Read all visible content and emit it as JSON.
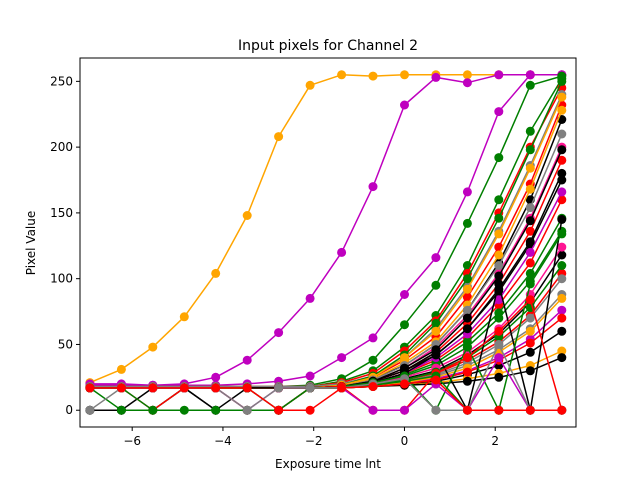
{
  "chart_data": {
    "type": "line",
    "title": "Input pixels for Channel 2",
    "xlabel": "Exposure time lnt",
    "ylabel": "Pixel Value",
    "xlim": [
      -7.15,
      3.78
    ],
    "ylim": [
      -12.75,
      267.75
    ],
    "grid": false,
    "x_ticks": [
      {
        "value": -6,
        "label": "−6"
      },
      {
        "value": -4,
        "label": "−4"
      },
      {
        "value": -2,
        "label": "−2"
      },
      {
        "value": 0,
        "label": "0"
      },
      {
        "value": 2,
        "label": "2"
      }
    ],
    "y_ticks": [
      {
        "value": 0,
        "label": "0"
      },
      {
        "value": 50,
        "label": "50"
      },
      {
        "value": 100,
        "label": "100"
      },
      {
        "value": 150,
        "label": "150"
      },
      {
        "value": 200,
        "label": "200"
      },
      {
        "value": 250,
        "label": "250"
      }
    ],
    "x": [
      -6.931,
      -6.238,
      -5.545,
      -4.852,
      -4.159,
      -3.466,
      -2.773,
      -2.079,
      -1.386,
      -0.693,
      0.0,
      0.693,
      1.386,
      2.079,
      2.773,
      3.466
    ],
    "colors": {
      "orange": "#ffa500",
      "purple": "#bf00bf",
      "green": "#007f00",
      "red": "#ff0000",
      "black": "#000000",
      "gray": "#808080",
      "pink": "#ff1493"
    },
    "series": [
      {
        "color": "#ffa500",
        "values": [
          21,
          31,
          48,
          71,
          104,
          148,
          208,
          247,
          255,
          254,
          255,
          255,
          255,
          255,
          255,
          255
        ]
      },
      {
        "color": "#bf00bf",
        "values": [
          20,
          20,
          19,
          20,
          25,
          38,
          59,
          85,
          120,
          170,
          232,
          253,
          249,
          255,
          255,
          255
        ]
      },
      {
        "color": "#bf00bf",
        "values": [
          19,
          19,
          19,
          19,
          19,
          20,
          22,
          26,
          40,
          55,
          88,
          116,
          166,
          227,
          255,
          255
        ]
      },
      {
        "color": "#007f00",
        "values": [
          18,
          18,
          18,
          18,
          18,
          18,
          18,
          19,
          24,
          38,
          65,
          95,
          142,
          192,
          247,
          254
        ]
      },
      {
        "color": "#007f00",
        "values": [
          17,
          17,
          17,
          17,
          17,
          17,
          17,
          18,
          22,
          30,
          48,
          72,
          110,
          160,
          212,
          252
        ]
      },
      {
        "color": "#ff0000",
        "values": [
          18,
          18,
          18,
          18,
          18,
          18,
          18,
          18,
          21,
          28,
          45,
          68,
          104,
          150,
          200,
          245
        ]
      },
      {
        "color": "#ff0000",
        "values": [
          17,
          17,
          17,
          17,
          17,
          17,
          17,
          17,
          20,
          25,
          38,
          56,
          86,
          124,
          172,
          232
        ]
      },
      {
        "color": "#000000",
        "values": [
          17,
          17,
          17,
          17,
          17,
          17,
          17,
          17,
          19,
          24,
          34,
          50,
          76,
          112,
          160,
          221
        ]
      },
      {
        "color": "#808080",
        "values": [
          18,
          18,
          18,
          18,
          18,
          18,
          18,
          18,
          20,
          26,
          40,
          62,
          94,
          136,
          186,
          240
        ]
      },
      {
        "color": "#000000",
        "values": [
          17,
          17,
          17,
          17,
          17,
          17,
          17,
          17,
          18,
          22,
          30,
          42,
          62,
          90,
          126,
          175
        ]
      },
      {
        "color": "#ffa500",
        "values": [
          17,
          17,
          17,
          17,
          17,
          17,
          17,
          17,
          19,
          24,
          36,
          52,
          80,
          118,
          168,
          228
        ]
      },
      {
        "color": "#ff0000",
        "values": [
          17,
          17,
          17,
          17,
          17,
          17,
          17,
          17,
          18,
          21,
          28,
          38,
          55,
          80,
          112,
          160
        ]
      },
      {
        "color": "#007f00",
        "values": [
          17,
          17,
          17,
          17,
          17,
          17,
          17,
          17,
          18,
          21,
          26,
          34,
          48,
          70,
          98,
          136
        ]
      },
      {
        "color": "#000000",
        "values": [
          17,
          17,
          17,
          17,
          17,
          17,
          17,
          17,
          18,
          20,
          24,
          30,
          42,
          58,
          82,
          118
        ]
      },
      {
        "color": "#ff0000",
        "values": [
          17,
          17,
          17,
          17,
          17,
          17,
          17,
          17,
          18,
          20,
          23,
          28,
          38,
          52,
          72,
          104
        ]
      },
      {
        "color": "#808080",
        "values": [
          17,
          17,
          17,
          17,
          17,
          17,
          17,
          17,
          18,
          19,
          22,
          26,
          34,
          46,
          62,
          88
        ]
      },
      {
        "color": "#bf00bf",
        "values": [
          17,
          17,
          17,
          17,
          17,
          17,
          17,
          17,
          17,
          19,
          21,
          24,
          30,
          40,
          54,
          76
        ]
      },
      {
        "color": "#000000",
        "values": [
          17,
          17,
          17,
          17,
          17,
          17,
          17,
          17,
          17,
          18,
          20,
          22,
          27,
          34,
          44,
          60
        ]
      },
      {
        "color": "#ffa500",
        "values": [
          17,
          17,
          17,
          17,
          17,
          17,
          17,
          17,
          17,
          18,
          19,
          21,
          24,
          28,
          34,
          45
        ]
      },
      {
        "color": "#000000",
        "values": [
          17,
          17,
          17,
          17,
          17,
          17,
          17,
          17,
          17,
          18,
          19,
          20,
          22,
          25,
          30,
          40
        ]
      },
      {
        "color": "#ff1493",
        "values": [
          17,
          17,
          17,
          17,
          17,
          17,
          17,
          17,
          18,
          22,
          32,
          48,
          72,
          104,
          146,
          200
        ]
      },
      {
        "color": "#007f00",
        "values": [
          17,
          17,
          17,
          17,
          17,
          17,
          17,
          17,
          19,
          26,
          42,
          66,
          100,
          146,
          198,
          250
        ]
      },
      {
        "color": "#ffa500",
        "values": [
          17,
          17,
          17,
          17,
          17,
          17,
          17,
          17,
          19,
          25,
          40,
          60,
          92,
          134,
          184,
          238
        ]
      },
      {
        "color": "#808080",
        "values": [
          17,
          17,
          17,
          17,
          17,
          17,
          17,
          17,
          18,
          23,
          34,
          50,
          76,
          110,
          154,
          210
        ]
      },
      {
        "color": "#ff0000",
        "values": [
          17,
          17,
          17,
          17,
          17,
          17,
          17,
          17,
          18,
          22,
          30,
          44,
          66,
          96,
          136,
          190
        ]
      },
      {
        "color": "#000000",
        "values": [
          17,
          17,
          17,
          17,
          17,
          17,
          17,
          17,
          18,
          22,
          32,
          46,
          70,
          102,
          144,
          198
        ]
      },
      {
        "color": "#007f00",
        "values": [
          17,
          17,
          17,
          17,
          17,
          17,
          17,
          17,
          18,
          21,
          27,
          36,
          52,
          74,
          104,
          146
        ]
      },
      {
        "color": "#bf00bf",
        "values": [
          17,
          17,
          17,
          17,
          17,
          17,
          17,
          17,
          18,
          21,
          28,
          40,
          58,
          84,
          120,
          166
        ]
      },
      {
        "color": "#ff1493",
        "values": [
          17,
          17,
          17,
          17,
          17,
          17,
          17,
          17,
          18,
          20,
          25,
          32,
          44,
          62,
          88,
          124
        ]
      },
      {
        "color": "#808080",
        "values": [
          17,
          17,
          17,
          17,
          17,
          17,
          17,
          17,
          17,
          19,
          22,
          27,
          36,
          50,
          70,
          100
        ]
      },
      {
        "color": "#007f00",
        "values": [
          17,
          17,
          17,
          17,
          17,
          17,
          17,
          17,
          17,
          19,
          23,
          29,
          40,
          56,
          78,
          110
        ]
      },
      {
        "color": "#ffa500",
        "values": [
          17,
          17,
          17,
          17,
          17,
          17,
          17,
          17,
          17,
          19,
          21,
          25,
          32,
          44,
          60,
          85
        ]
      },
      {
        "color": "#ff0000",
        "values": [
          17,
          17,
          17,
          17,
          17,
          17,
          17,
          17,
          17,
          18,
          20,
          23,
          29,
          38,
          51,
          70
        ]
      },
      {
        "color": "#000000",
        "values": [
          0,
          0,
          17,
          17,
          0,
          17,
          17,
          17,
          18,
          21,
          28,
          42,
          62,
          92,
          128,
          180
        ]
      },
      {
        "color": "#000000",
        "values": [
          0,
          0,
          0,
          17,
          0,
          0,
          0,
          17,
          18,
          22,
          30,
          44,
          0,
          96,
          0,
          145
        ]
      },
      {
        "color": "#007f00",
        "values": [
          17,
          0,
          0,
          17,
          17,
          17,
          0,
          17,
          18,
          21,
          26,
          0,
          48,
          0,
          96,
          134
        ]
      },
      {
        "color": "#ff0000",
        "values": [
          17,
          17,
          0,
          17,
          17,
          0,
          0,
          17,
          18,
          0,
          0,
          28,
          40,
          60,
          84,
          0
        ]
      },
      {
        "color": "#bf00bf",
        "values": [
          17,
          17,
          17,
          17,
          17,
          0,
          17,
          17,
          17,
          0,
          0,
          20,
          0,
          40,
          0,
          0
        ]
      },
      {
        "color": "#007f00",
        "values": [
          17,
          17,
          0,
          0,
          0,
          0,
          0,
          17,
          17,
          19,
          22,
          26,
          0,
          0,
          0,
          0
        ]
      },
      {
        "color": "#808080",
        "values": [
          0,
          17,
          17,
          17,
          17,
          0,
          17,
          17,
          17,
          20,
          24,
          0,
          0,
          50,
          0,
          0
        ]
      },
      {
        "color": "#ff0000",
        "values": [
          17,
          17,
          17,
          17,
          17,
          17,
          0,
          0,
          17,
          18,
          20,
          23,
          0,
          0,
          0,
          0
        ]
      }
    ]
  }
}
